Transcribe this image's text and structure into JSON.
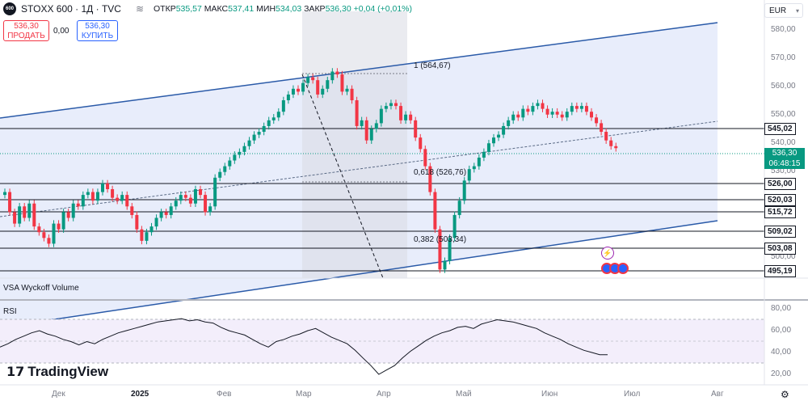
{
  "header": {
    "logo_text": "600",
    "symbol": "STOXX 600 · 1Д · TVC",
    "open_label": "ОТКР",
    "open_value": "535,57",
    "high_label": "МАКС",
    "high_value": "537,41",
    "low_label": "МИН",
    "low_value": "534,03",
    "close_label": "ЗАКР",
    "close_value": "536,30",
    "change": "+0,04 (+0,01%)"
  },
  "trade": {
    "sell_price": "536,30",
    "sell_label": "ПРОДАТЬ",
    "spread": "0,00",
    "buy_price": "536,30",
    "buy_label": "КУПИТЬ"
  },
  "currency": "EUR",
  "y_axis": {
    "labels": [
      "580,00",
      "570,00",
      "560,00",
      "550,00",
      "540,00",
      "530,00",
      "500,00"
    ],
    "price_tags": [
      "545,02",
      "526,00",
      "520,03",
      "515,72",
      "509,02",
      "503,08",
      "495,19"
    ],
    "last_price": "536,30",
    "countdown": "06:48:15"
  },
  "fib": {
    "top": "1 (564,67)",
    "mid": "0,618 (526,76)",
    "low": "0,382 (503,34)"
  },
  "panes": {
    "volume_title": "VSA Wyckoff Volume",
    "rsi_title": "RSI",
    "rsi_labels": [
      "80,00",
      "60,00",
      "40,00",
      "20,00"
    ]
  },
  "x_axis": [
    "Дек",
    "2025",
    "Фев",
    "Мар",
    "Апр",
    "Май",
    "Июн",
    "Июл",
    "Авг"
  ],
  "branding": {
    "name": "TradingView"
  },
  "colors": {
    "up": "#089981",
    "down": "#f23645",
    "channel": "#2a5aa8",
    "channel_fill": "#e8edfb",
    "rsi_band": "#f3eefb"
  },
  "chart_data": {
    "type": "candlestick",
    "ylim": [
      491,
      584
    ],
    "closes": [
      521,
      514,
      510,
      516,
      512,
      517,
      509,
      507,
      505,
      503,
      510,
      508,
      514,
      512,
      517,
      516,
      520,
      521,
      518,
      521,
      524,
      522,
      519,
      518,
      520,
      516,
      513,
      508,
      504,
      507,
      509,
      512,
      514,
      513,
      516,
      518,
      520,
      519,
      517,
      522,
      520,
      514,
      516,
      526,
      528,
      530,
      532,
      534,
      535,
      537,
      539,
      541,
      542,
      544,
      546,
      547,
      549,
      553,
      555,
      557,
      556,
      559,
      561,
      560,
      555,
      557,
      560,
      563,
      562,
      556,
      557,
      553,
      544,
      546,
      539,
      543,
      545,
      550,
      551,
      552,
      551,
      546,
      548,
      546,
      540,
      536,
      530,
      521,
      508,
      494,
      497,
      505,
      513,
      518,
      525,
      529,
      530,
      533,
      535,
      538,
      540,
      541,
      544,
      546,
      548,
      547,
      550,
      549,
      551,
      552,
      550,
      548,
      549,
      548,
      547,
      549,
      551,
      550,
      551,
      549,
      547,
      545,
      542,
      539,
      537,
      536.3
    ],
    "rsi": [
      45,
      48,
      52,
      55,
      58,
      60,
      57,
      55,
      52,
      50,
      47,
      50,
      48,
      52,
      55,
      58,
      60,
      62,
      64,
      66,
      68,
      69,
      70,
      71,
      69,
      70,
      68,
      67,
      63,
      60,
      58,
      56,
      52,
      48,
      45,
      50,
      52,
      55,
      57,
      60,
      62,
      58,
      54,
      51,
      48,
      42,
      35,
      28,
      20,
      24,
      28,
      35,
      41,
      46,
      51,
      55,
      58,
      60,
      63,
      64,
      62,
      66,
      68,
      70,
      69,
      68,
      66,
      64,
      62,
      58,
      55,
      52,
      48,
      45,
      42,
      40,
      38,
      38
    ]
  }
}
